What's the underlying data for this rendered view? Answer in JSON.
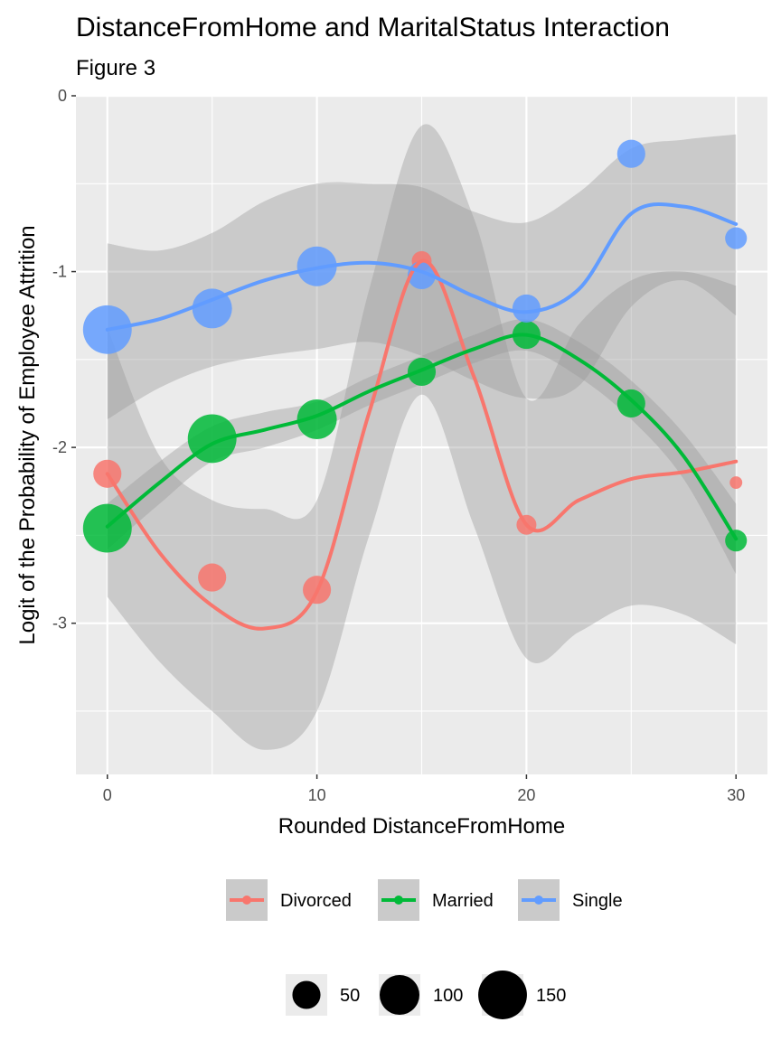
{
  "chart_data": {
    "type": "scatter",
    "title": "DistanceFromHome and MaritalStatus Interaction",
    "subtitle": "Figure 3",
    "xlabel": "Rounded DistanceFromHome",
    "ylabel": "Logit of the Probability of Employee Attrition",
    "xlim": [
      -1.5,
      31.5
    ],
    "ylim": [
      -3.86,
      0
    ],
    "x_ticks": [
      0,
      10,
      20,
      30
    ],
    "y_ticks": [
      0,
      -1,
      -2,
      -3
    ],
    "grid": true,
    "smooth": "loess with confidence band",
    "colors": {
      "Divorced": "#F8766D",
      "Married": "#00BA38",
      "Single": "#619CFF",
      "band": "#999999",
      "panel": "#EBEBEB"
    },
    "series": [
      {
        "name": "Divorced",
        "points": [
          {
            "x": 0,
            "y": -2.15,
            "n": 50
          },
          {
            "x": 5,
            "y": -2.74,
            "n": 50
          },
          {
            "x": 10,
            "y": -2.81,
            "n": 50
          },
          {
            "x": 15,
            "y": -0.94,
            "n": 25
          },
          {
            "x": 20,
            "y": -2.44,
            "n": 25
          },
          {
            "x": 30,
            "y": -2.2,
            "n": 10
          }
        ],
        "fit": [
          [
            0,
            -2.15
          ],
          [
            2.5,
            -2.6
          ],
          [
            5,
            -2.9
          ],
          [
            7.5,
            -3.03
          ],
          [
            10,
            -2.82
          ],
          [
            12.5,
            -1.8
          ],
          [
            15,
            -0.94
          ],
          [
            17.5,
            -1.6
          ],
          [
            20,
            -2.44
          ],
          [
            22.5,
            -2.3
          ],
          [
            25,
            -2.18
          ],
          [
            27.5,
            -2.14
          ],
          [
            30,
            -2.08
          ]
        ],
        "band_upper": [
          [
            0,
            -1.32
          ],
          [
            2.5,
            -2.05
          ],
          [
            5,
            -2.3
          ],
          [
            7.5,
            -2.35
          ],
          [
            10,
            -2.3
          ],
          [
            12.5,
            -1.1
          ],
          [
            15,
            -0.17
          ],
          [
            17.5,
            -0.7
          ],
          [
            20,
            -1.72
          ],
          [
            22.5,
            -1.3
          ],
          [
            25,
            -1.05
          ],
          [
            27.5,
            -1.0
          ],
          [
            30,
            -1.08
          ]
        ],
        "band_lower": [
          [
            0,
            -2.85
          ],
          [
            2.5,
            -3.22
          ],
          [
            5,
            -3.5
          ],
          [
            7.5,
            -3.72
          ],
          [
            10,
            -3.5
          ],
          [
            12.5,
            -2.5
          ],
          [
            15,
            -1.7
          ],
          [
            17.5,
            -2.45
          ],
          [
            20,
            -3.2
          ],
          [
            22.5,
            -3.05
          ],
          [
            25,
            -2.9
          ],
          [
            27.5,
            -2.95
          ],
          [
            30,
            -3.12
          ]
        ]
      },
      {
        "name": "Married",
        "points": [
          {
            "x": 0,
            "y": -2.46,
            "n": 150
          },
          {
            "x": 5,
            "y": -1.95,
            "n": 150
          },
          {
            "x": 10,
            "y": -1.84,
            "n": 100
          },
          {
            "x": 15,
            "y": -1.57,
            "n": 50
          },
          {
            "x": 20,
            "y": -1.36,
            "n": 50
          },
          {
            "x": 25,
            "y": -1.75,
            "n": 50
          },
          {
            "x": 30,
            "y": -2.53,
            "n": 30
          }
        ],
        "fit": [
          [
            0,
            -2.45
          ],
          [
            2.5,
            -2.2
          ],
          [
            5,
            -1.98
          ],
          [
            7.5,
            -1.9
          ],
          [
            10,
            -1.82
          ],
          [
            12.5,
            -1.68
          ],
          [
            15,
            -1.56
          ],
          [
            17.5,
            -1.44
          ],
          [
            20,
            -1.36
          ],
          [
            22.5,
            -1.5
          ],
          [
            25,
            -1.73
          ],
          [
            27.5,
            -2.05
          ],
          [
            30,
            -2.52
          ]
        ],
        "band_upper": [
          [
            0,
            -2.32
          ],
          [
            2.5,
            -2.08
          ],
          [
            5,
            -1.88
          ],
          [
            7.5,
            -1.8
          ],
          [
            10,
            -1.74
          ],
          [
            12.5,
            -1.6
          ],
          [
            15,
            -1.48
          ],
          [
            17.5,
            -1.36
          ],
          [
            20,
            -1.27
          ],
          [
            22.5,
            -1.4
          ],
          [
            25,
            -1.62
          ],
          [
            27.5,
            -1.92
          ],
          [
            30,
            -2.32
          ]
        ],
        "band_lower": [
          [
            0,
            -2.58
          ],
          [
            2.5,
            -2.32
          ],
          [
            5,
            -2.08
          ],
          [
            7.5,
            -2.0
          ],
          [
            10,
            -1.9
          ],
          [
            12.5,
            -1.76
          ],
          [
            15,
            -1.64
          ],
          [
            17.5,
            -1.52
          ],
          [
            20,
            -1.45
          ],
          [
            22.5,
            -1.6
          ],
          [
            25,
            -1.84
          ],
          [
            27.5,
            -2.18
          ],
          [
            30,
            -2.72
          ]
        ]
      },
      {
        "name": "Single",
        "points": [
          {
            "x": 0,
            "y": -1.33,
            "n": 150
          },
          {
            "x": 5,
            "y": -1.21,
            "n": 100
          },
          {
            "x": 10,
            "y": -0.97,
            "n": 100
          },
          {
            "x": 15,
            "y": -1.02,
            "n": 50
          },
          {
            "x": 20,
            "y": -1.21,
            "n": 50
          },
          {
            "x": 25,
            "y": -0.33,
            "n": 50
          },
          {
            "x": 30,
            "y": -0.81,
            "n": 30
          }
        ],
        "fit": [
          [
            0,
            -1.33
          ],
          [
            2.5,
            -1.27
          ],
          [
            5,
            -1.16
          ],
          [
            7.5,
            -1.05
          ],
          [
            10,
            -0.98
          ],
          [
            12.5,
            -0.95
          ],
          [
            15,
            -1.0
          ],
          [
            17.5,
            -1.14
          ],
          [
            20,
            -1.23
          ],
          [
            22.5,
            -1.1
          ],
          [
            25,
            -0.67
          ],
          [
            27.5,
            -0.63
          ],
          [
            30,
            -0.73
          ]
        ],
        "band_upper": [
          [
            0,
            -0.84
          ],
          [
            2.5,
            -0.88
          ],
          [
            5,
            -0.78
          ],
          [
            7.5,
            -0.6
          ],
          [
            10,
            -0.5
          ],
          [
            12.5,
            -0.5
          ],
          [
            15,
            -0.52
          ],
          [
            17.5,
            -0.66
          ],
          [
            20,
            -0.72
          ],
          [
            22.5,
            -0.55
          ],
          [
            25,
            -0.3
          ],
          [
            27.5,
            -0.25
          ],
          [
            30,
            -0.22
          ]
        ],
        "band_lower": [
          [
            0,
            -1.84
          ],
          [
            2.5,
            -1.66
          ],
          [
            5,
            -1.54
          ],
          [
            7.5,
            -1.48
          ],
          [
            10,
            -1.44
          ],
          [
            12.5,
            -1.4
          ],
          [
            15,
            -1.48
          ],
          [
            17.5,
            -1.62
          ],
          [
            20,
            -1.72
          ],
          [
            22.5,
            -1.65
          ],
          [
            25,
            -1.2
          ],
          [
            27.5,
            -1.05
          ],
          [
            30,
            -1.25
          ]
        ]
      }
    ],
    "legend_color": {
      "entries": [
        "Divorced",
        "Married",
        "Single"
      ],
      "placement": "bottom"
    },
    "legend_size": {
      "entries": [
        {
          "label": "50",
          "n": 50
        },
        {
          "label": "100",
          "n": 100
        },
        {
          "label": "150",
          "n": 150
        }
      ],
      "placement": "bottom"
    }
  }
}
